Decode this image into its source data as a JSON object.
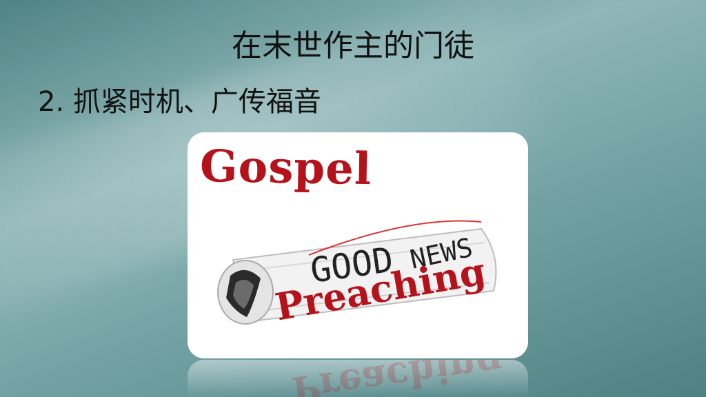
{
  "slide": {
    "title": "在末世作主的门徒",
    "subtitle": "2.  抓紧时机、广传福音"
  },
  "image": {
    "word_top": "Gospel",
    "newspaper_text": [
      "GOOD",
      "NEWS"
    ],
    "word_bottom": "Preaching",
    "accent_color": "#b5121b"
  }
}
